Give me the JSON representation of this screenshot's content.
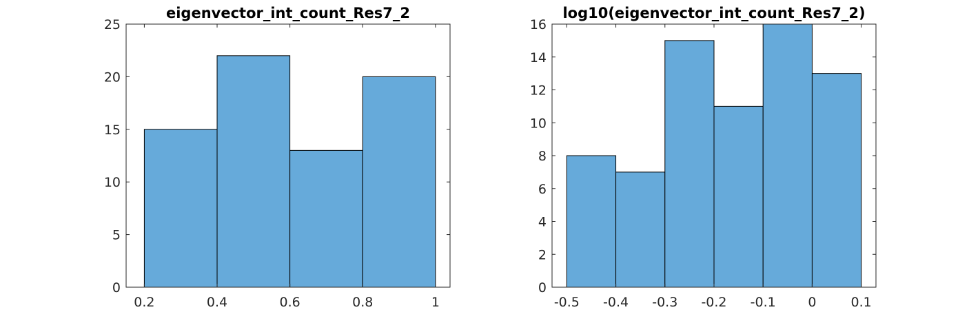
{
  "chart_data": [
    {
      "type": "bar",
      "title": "eigenvector_int_count_Res7_2",
      "xlabel": "",
      "ylabel": "",
      "bin_edges": [
        0.2,
        0.4,
        0.6,
        0.8,
        1.0
      ],
      "values": [
        15,
        22,
        13,
        20
      ],
      "xlim": [
        0.15,
        1.04
      ],
      "ylim": [
        0,
        25
      ],
      "xticks": [
        0.2,
        0.4,
        0.6,
        0.8,
        1
      ],
      "xtick_labels": [
        "0.2",
        "0.4",
        "0.6",
        "0.8",
        "1"
      ],
      "yticks": [
        0,
        5,
        10,
        15,
        20,
        25
      ],
      "ytick_labels": [
        "0",
        "5",
        "10",
        "15",
        "20",
        "25"
      ],
      "grid": false,
      "bar_color": "#66AADA",
      "edge_color": "#000000"
    },
    {
      "type": "bar",
      "title": "log10(eigenvector_int_count_Res7_2)",
      "xlabel": "",
      "ylabel": "",
      "bin_edges": [
        -0.5,
        -0.4,
        -0.3,
        -0.2,
        -0.1,
        0.0,
        0.1
      ],
      "values": [
        8,
        7,
        15,
        11,
        16,
        13
      ],
      "xlim": [
        -0.53,
        0.13
      ],
      "ylim": [
        0,
        16
      ],
      "xticks": [
        -0.5,
        -0.4,
        -0.3,
        -0.2,
        -0.1,
        0,
        0.1
      ],
      "xtick_labels": [
        "-0.5",
        "-0.4",
        "-0.3",
        "-0.2",
        "-0.1",
        "0",
        "0.1"
      ],
      "yticks": [
        0,
        2,
        4,
        6,
        8,
        10,
        12,
        14,
        16
      ],
      "ytick_labels": [
        "0",
        "2",
        "4",
        "6",
        "8",
        "10",
        "12",
        "14",
        "16"
      ],
      "grid": false,
      "bar_color": "#66AADA",
      "edge_color": "#000000"
    }
  ]
}
